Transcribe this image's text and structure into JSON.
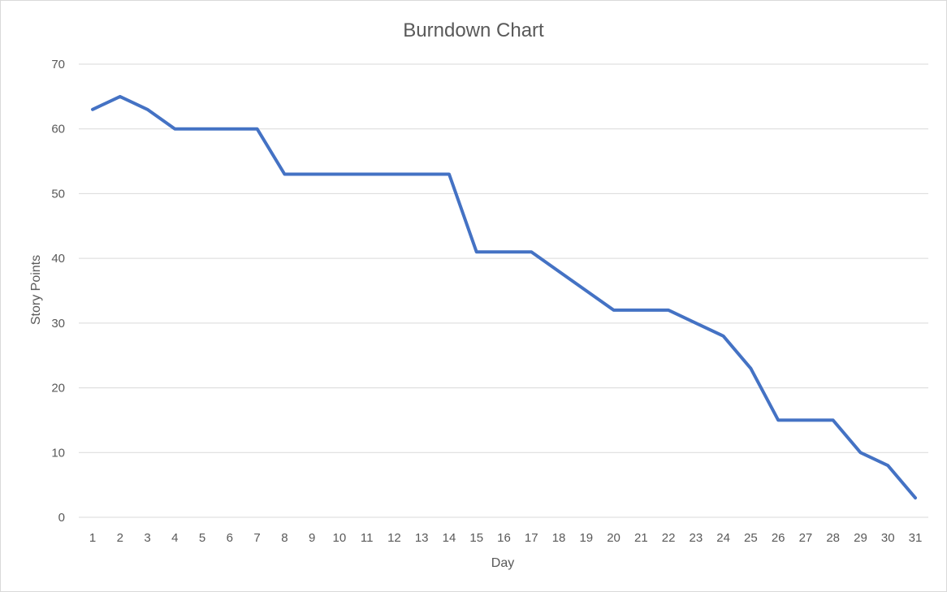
{
  "chart_data": {
    "type": "line",
    "title": "Burndown Chart",
    "xlabel": "Day",
    "ylabel": "Story Points",
    "categories": [
      "1",
      "2",
      "3",
      "4",
      "5",
      "6",
      "7",
      "8",
      "9",
      "10",
      "11",
      "12",
      "13",
      "14",
      "15",
      "16",
      "17",
      "18",
      "19",
      "20",
      "21",
      "22",
      "23",
      "24",
      "25",
      "26",
      "27",
      "28",
      "29",
      "30",
      "31"
    ],
    "series": [
      {
        "values": [
          63,
          65,
          63,
          60,
          60,
          60,
          60,
          53,
          53,
          53,
          53,
          53,
          53,
          53,
          41,
          41,
          41,
          38,
          35,
          32,
          32,
          32,
          30,
          28,
          23,
          15,
          15,
          15,
          10,
          8,
          3
        ],
        "color": "#4472c4"
      }
    ],
    "ylim": [
      0,
      70
    ],
    "yticks": [
      0,
      10,
      20,
      30,
      40,
      50,
      60,
      70
    ],
    "grid": true,
    "legend": "none"
  }
}
